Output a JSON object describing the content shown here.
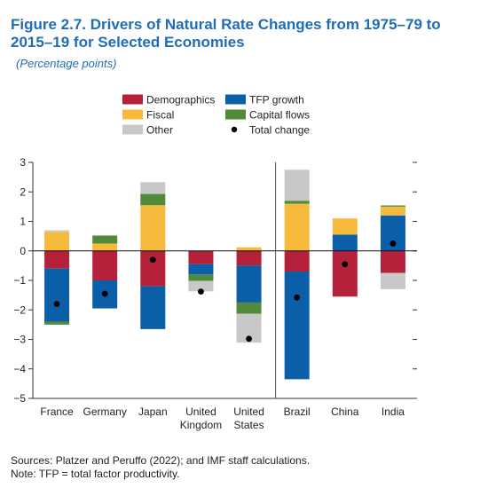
{
  "figure": {
    "title_line1": "Figure 2.7.  Drivers of Natural Rate Changes from 1975–79 to",
    "title_line2": "2015–19 for Selected Economies",
    "subtitle": "(Percentage points)"
  },
  "chart_data": {
    "type": "bar",
    "stacked": true,
    "categories": [
      [
        "France"
      ],
      [
        "Germany"
      ],
      [
        "Japan"
      ],
      [
        "United",
        "Kingdom"
      ],
      [
        "United",
        "States"
      ],
      [
        "Brazil"
      ],
      [
        "China"
      ],
      [
        "India"
      ]
    ],
    "series": [
      {
        "name": "Demographics",
        "color": "#b5203a",
        "values": [
          -0.6,
          -1.0,
          -1.2,
          -0.45,
          -0.5,
          -0.7,
          -1.55,
          -0.75
        ]
      },
      {
        "name": "TFP growth",
        "color": "#0b5ea8",
        "values": [
          -1.8,
          -0.95,
          -1.45,
          -0.35,
          -1.25,
          -3.65,
          0.55,
          1.2
        ]
      },
      {
        "name": "Fiscal",
        "color": "#f6bb3d",
        "values": [
          0.65,
          0.25,
          1.55,
          0.0,
          0.12,
          1.6,
          0.55,
          0.3
        ]
      },
      {
        "name": "Capital flows",
        "color": "#4f8b3a",
        "values": [
          -0.1,
          0.27,
          0.38,
          -0.22,
          -0.38,
          0.1,
          0.0,
          0.04
        ]
      },
      {
        "name": "Other",
        "color": "#c8c8c8",
        "values": [
          0.05,
          0.0,
          0.4,
          -0.35,
          -0.98,
          1.05,
          0.0,
          -0.55
        ]
      }
    ],
    "total_change": {
      "name": "Total change",
      "values": [
        -1.8,
        -1.45,
        -0.3,
        -1.38,
        -2.98,
        -1.58,
        -0.45,
        0.25
      ]
    },
    "ylim": [
      -5,
      3
    ],
    "yticks": [
      -5,
      -4,
      -3,
      -2,
      -1,
      0,
      1,
      2,
      3
    ],
    "legend": {
      "placement": "top-center",
      "items": [
        "Demographics",
        "TFP growth",
        "Fiscal",
        "Capital flows",
        "Other",
        "Total change"
      ]
    },
    "divider_after_category": 4
  },
  "notes": {
    "sources": "Sources: Platzer and Peruffo (2022); and IMF staff calculations.",
    "note": "Note: TFP = total factor productivity."
  }
}
